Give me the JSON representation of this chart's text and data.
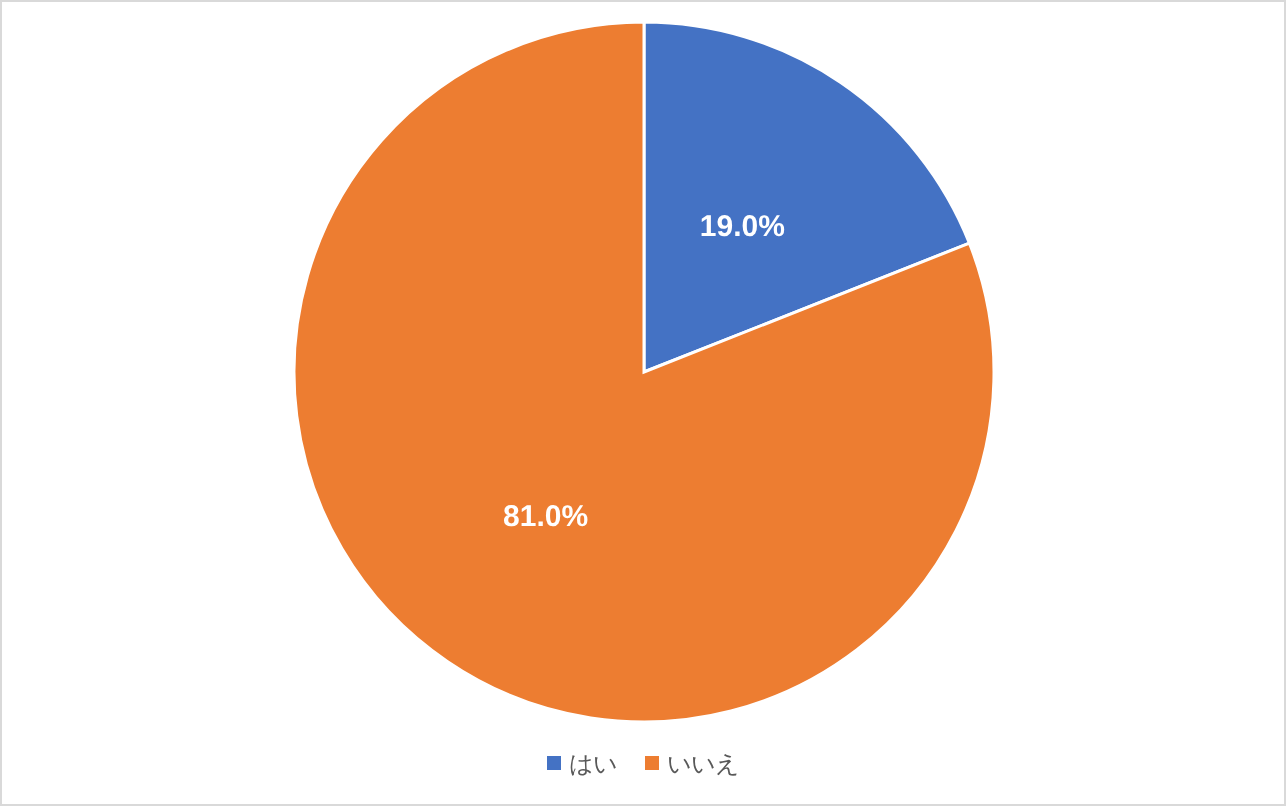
{
  "chart_data": {
    "type": "pie",
    "categories": [
      "はい",
      "いいえ"
    ],
    "values": [
      19.0,
      81.0
    ],
    "colors": [
      "#4472c4",
      "#ed7d31"
    ],
    "value_labels": [
      "19.0%",
      "81.0%"
    ],
    "legend": "bottom"
  }
}
